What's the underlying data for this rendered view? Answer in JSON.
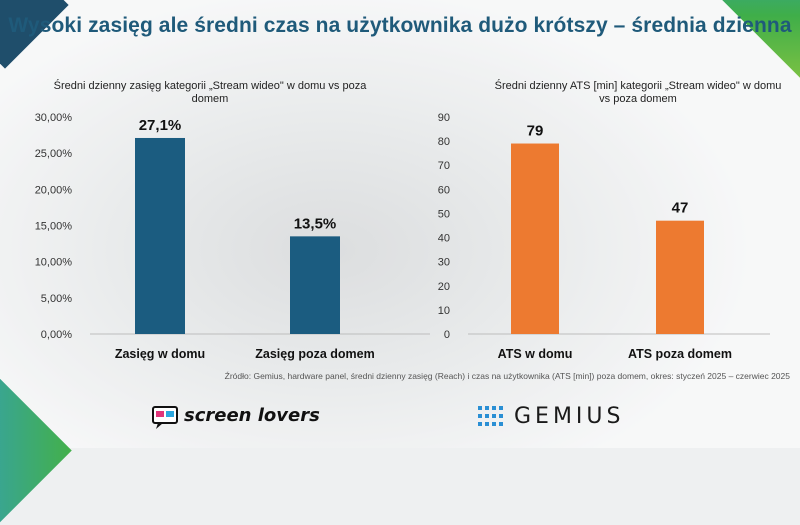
{
  "title": "Wysoki zasięg ale średni czas na użytkownika dużo krótszy – średnia dzienna",
  "colors": {
    "title": "#1f5a7a",
    "bar_blue": "#1b5c80",
    "bar_orange": "#ed7a30"
  },
  "chart_data": [
    {
      "type": "bar",
      "title_lines": [
        "Średni dzienny zasięg kategorii „Stream wideo\" w domu vs poza",
        "domem"
      ],
      "categories": [
        "Zasięg w domu",
        "Zasięg poza domem"
      ],
      "values": [
        27.1,
        13.5
      ],
      "value_labels": [
        "27,1%",
        "13,5%"
      ],
      "ylim": [
        0,
        30
      ],
      "ytick_values": [
        0,
        5,
        10,
        15,
        20,
        25,
        30
      ],
      "ytick_labels": [
        "0,00%",
        "5,00%",
        "10,00%",
        "15,00%",
        "20,00%",
        "25,00%",
        "30,00%"
      ],
      "color": "#1b5c80"
    },
    {
      "type": "bar",
      "title_lines": [
        "Średni dzienny ATS [min] kategorii „Stream wideo\" w domu",
        "vs poza domem"
      ],
      "categories": [
        "ATS w domu",
        "ATS poza domem"
      ],
      "values": [
        79,
        47
      ],
      "value_labels": [
        "79",
        "47"
      ],
      "ylim": [
        0,
        90
      ],
      "ytick_values": [
        0,
        10,
        20,
        30,
        40,
        50,
        60,
        70,
        80,
        90
      ],
      "ytick_labels": [
        "0",
        "10",
        "20",
        "30",
        "40",
        "50",
        "60",
        "70",
        "80",
        "90"
      ],
      "color": "#ed7a30"
    }
  ],
  "source": "Źródło: Gemius, hardware panel, średni dzienny zasięg (Reach) i czas na użytkownika (ATS [min]) poza domem, okres: styczeń 2025 – czerwiec 2025",
  "logos": {
    "screenlovers": "screen lovers",
    "gemius": "GEMIUS"
  }
}
